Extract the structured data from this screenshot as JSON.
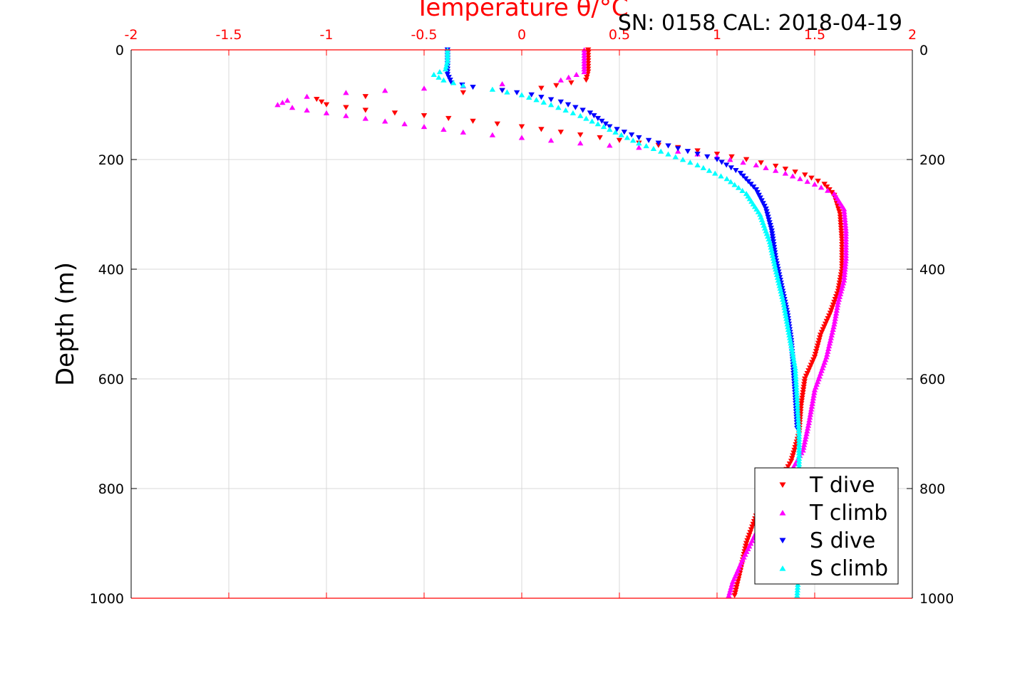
{
  "chart_data": {
    "type": "scatter",
    "xlabel": "Temperature θ/°C",
    "ylabel": "Depth (m)",
    "annotation": "SN: 0158  CAL: 2018-04-19",
    "xlim": [
      -2,
      2
    ],
    "ylim": [
      0,
      1000
    ],
    "y_reversed": true,
    "x_axis_location": "top",
    "y_axis_duplicated_right": true,
    "grid": true,
    "legend_location": "bottom-right",
    "xticks": [
      "-2",
      "-1.5",
      "-1",
      "-0.5",
      "0",
      "0.5",
      "1",
      "1.5",
      "2"
    ],
    "yticks": [
      "0",
      "200",
      "400",
      "600",
      "800",
      "1000"
    ],
    "series": [
      {
        "name": "T dive",
        "marker": "triangle-down",
        "color": "#ff0000",
        "points": [
          [
            0.34,
            0
          ],
          [
            0.34,
            20
          ],
          [
            0.34,
            40
          ],
          [
            0.33,
            55
          ],
          [
            0.1,
            70
          ],
          [
            -0.3,
            78
          ],
          [
            -0.8,
            85
          ],
          [
            -1.05,
            90
          ],
          [
            -1.0,
            100
          ],
          [
            -0.8,
            110
          ],
          [
            -0.5,
            120
          ],
          [
            -0.25,
            130
          ],
          [
            0.0,
            140
          ],
          [
            0.3,
            155
          ],
          [
            0.6,
            170
          ],
          [
            0.8,
            178
          ],
          [
            1.0,
            190
          ],
          [
            1.15,
            200
          ],
          [
            1.3,
            212
          ],
          [
            1.45,
            228
          ],
          [
            1.55,
            245
          ],
          [
            1.6,
            265
          ],
          [
            1.63,
            300
          ],
          [
            1.64,
            350
          ],
          [
            1.64,
            400
          ],
          [
            1.62,
            440
          ],
          [
            1.58,
            480
          ],
          [
            1.53,
            520
          ],
          [
            1.5,
            560
          ],
          [
            1.45,
            600
          ],
          [
            1.43,
            650
          ],
          [
            1.42,
            700
          ],
          [
            1.38,
            750
          ],
          [
            1.3,
            800
          ],
          [
            1.2,
            850
          ],
          [
            1.15,
            900
          ],
          [
            1.12,
            950
          ],
          [
            1.09,
            995
          ]
        ]
      },
      {
        "name": "T climb",
        "marker": "triangle-up",
        "color": "#ff00ff",
        "points": [
          [
            0.32,
            0
          ],
          [
            0.32,
            20
          ],
          [
            0.32,
            40
          ],
          [
            0.2,
            55
          ],
          [
            -0.1,
            62
          ],
          [
            -0.5,
            70
          ],
          [
            -0.9,
            78
          ],
          [
            -1.1,
            85
          ],
          [
            -1.2,
            92
          ],
          [
            -1.25,
            100
          ],
          [
            -1.1,
            110
          ],
          [
            -0.9,
            120
          ],
          [
            -0.6,
            135
          ],
          [
            -0.3,
            150
          ],
          [
            0.0,
            160
          ],
          [
            0.3,
            170
          ],
          [
            0.6,
            178
          ],
          [
            0.8,
            185
          ],
          [
            1.0,
            195
          ],
          [
            1.2,
            210
          ],
          [
            1.35,
            225
          ],
          [
            1.5,
            245
          ],
          [
            1.6,
            262
          ],
          [
            1.65,
            290
          ],
          [
            1.66,
            330
          ],
          [
            1.66,
            380
          ],
          [
            1.65,
            420
          ],
          [
            1.62,
            460
          ],
          [
            1.6,
            500
          ],
          [
            1.56,
            560
          ],
          [
            1.5,
            620
          ],
          [
            1.47,
            680
          ],
          [
            1.44,
            730
          ],
          [
            1.36,
            780
          ],
          [
            1.28,
            830
          ],
          [
            1.2,
            880
          ],
          [
            1.13,
            930
          ],
          [
            1.08,
            970
          ],
          [
            1.06,
            995
          ]
        ]
      },
      {
        "name": "S dive",
        "marker": "triangle-down",
        "color": "#0000ff",
        "points": [
          [
            -0.38,
            0
          ],
          [
            -0.38,
            25
          ],
          [
            -0.38,
            45
          ],
          [
            -0.36,
            60
          ],
          [
            -0.25,
            68
          ],
          [
            -0.1,
            74
          ],
          [
            0.05,
            82
          ],
          [
            0.2,
            95
          ],
          [
            0.35,
            115
          ],
          [
            0.45,
            140
          ],
          [
            0.6,
            160
          ],
          [
            0.8,
            180
          ],
          [
            1.0,
            200
          ],
          [
            1.12,
            225
          ],
          [
            1.2,
            255
          ],
          [
            1.25,
            290
          ],
          [
            1.28,
            330
          ],
          [
            1.3,
            380
          ],
          [
            1.33,
            430
          ],
          [
            1.36,
            480
          ],
          [
            1.38,
            530
          ],
          [
            1.39,
            580
          ],
          [
            1.4,
            630
          ],
          [
            1.41,
            690
          ]
        ]
      },
      {
        "name": "S climb",
        "marker": "triangle-up",
        "color": "#00ffff",
        "points": [
          [
            -0.38,
            0
          ],
          [
            -0.38,
            20
          ],
          [
            -0.39,
            35
          ],
          [
            -0.45,
            45
          ],
          [
            -0.4,
            55
          ],
          [
            -0.3,
            65
          ],
          [
            -0.15,
            72
          ],
          [
            0.0,
            82
          ],
          [
            0.15,
            100
          ],
          [
            0.3,
            120
          ],
          [
            0.45,
            145
          ],
          [
            0.6,
            170
          ],
          [
            0.75,
            190
          ],
          [
            0.9,
            210
          ],
          [
            1.05,
            235
          ],
          [
            1.15,
            262
          ],
          [
            1.22,
            300
          ],
          [
            1.27,
            350
          ],
          [
            1.3,
            400
          ],
          [
            1.34,
            460
          ],
          [
            1.37,
            520
          ],
          [
            1.4,
            580
          ],
          [
            1.41,
            640
          ],
          [
            1.42,
            700
          ],
          [
            1.42,
            760
          ],
          [
            1.42,
            820
          ],
          [
            1.42,
            880
          ],
          [
            1.42,
            940
          ],
          [
            1.41,
            995
          ]
        ]
      }
    ]
  }
}
